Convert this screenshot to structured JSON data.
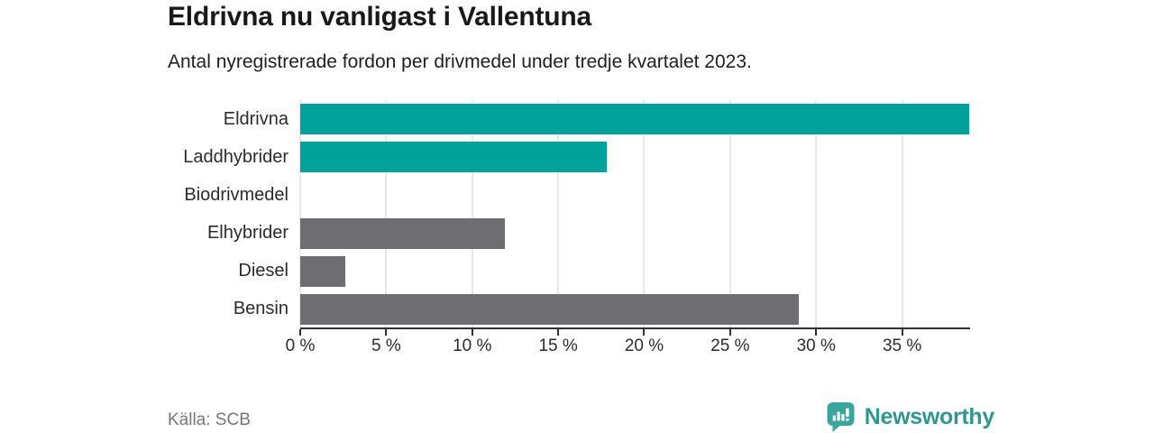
{
  "title": "Eldrivna nu vanligast i Vallentuna",
  "subtitle": "Antal nyregistrerade fordon per drivmedel under tredje kvartalet 2023.",
  "source": "Källa: SCB",
  "brand": {
    "name": "Newsworthy",
    "icon": "newsworthy-chart-pin-icon",
    "text_color": "#2f9690",
    "icon_color": "#3ba49c"
  },
  "colors": {
    "accent_teal": "#00a29a",
    "neutral_gray": "#6d6d72",
    "gridline": "#e8e8e8",
    "axis": "#303030",
    "text_dark": "#191919",
    "text_muted": "#75757b"
  },
  "chart_data": {
    "type": "bar",
    "orientation": "horizontal",
    "title": "Eldrivna nu vanligast i Vallentuna",
    "subtitle": "Antal nyregistrerade fordon per drivmedel under tredje kvartalet 2023.",
    "categories": [
      "Eldrivna",
      "Laddhybrider",
      "Biodrivmedel",
      "Elhybrider",
      "Diesel",
      "Bensin"
    ],
    "values": [
      38.9,
      17.8,
      0,
      11.9,
      2.6,
      29.0
    ],
    "bar_colors": [
      "#00a29a",
      "#00a29a",
      "#00a29a",
      "#6d6d72",
      "#6d6d72",
      "#6d6d72"
    ],
    "unit": "%",
    "xlim": [
      0,
      38.9
    ],
    "xticks": [
      0,
      5,
      10,
      15,
      20,
      25,
      30,
      35
    ],
    "xtick_labels": [
      "0 %",
      "5 %",
      "10 %",
      "15 %",
      "20 %",
      "25 %",
      "30 %",
      "35 %"
    ],
    "grid": true,
    "legend": false,
    "data_labels": false
  }
}
